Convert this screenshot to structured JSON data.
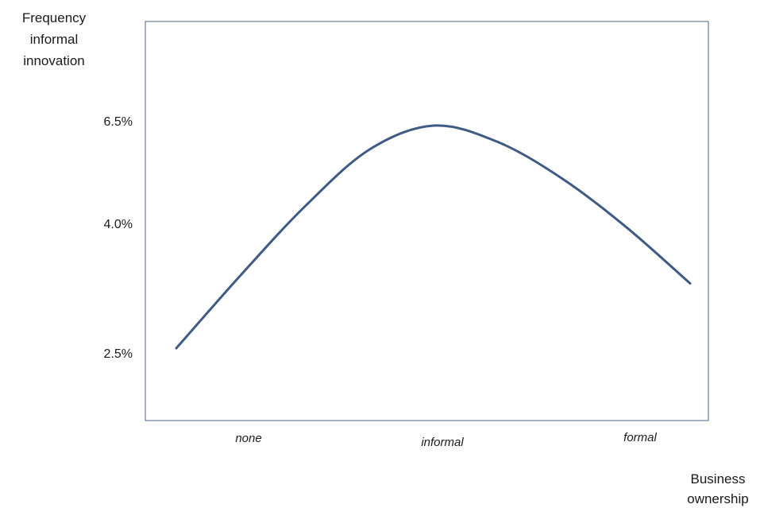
{
  "chart_data": {
    "type": "line",
    "ylabel_lines": [
      "Frequency",
      "informal",
      "innovation"
    ],
    "xlabel_lines": [
      "Business",
      "ownership"
    ],
    "categories": [
      "none",
      "informal",
      "formal"
    ],
    "yticks": [
      "2.5%",
      "4.0%",
      "6.5%"
    ],
    "series": [
      {
        "x": [
          0,
          0.25,
          0.5,
          0.75,
          1.0,
          1.25,
          1.5,
          1.75,
          2.0
        ],
        "y": [
          2.65,
          3.55,
          4.4,
          5.1,
          5.4,
          5.2,
          4.75,
          4.15,
          3.45
        ],
        "color": "#3f5a84"
      }
    ],
    "grid": false
  }
}
